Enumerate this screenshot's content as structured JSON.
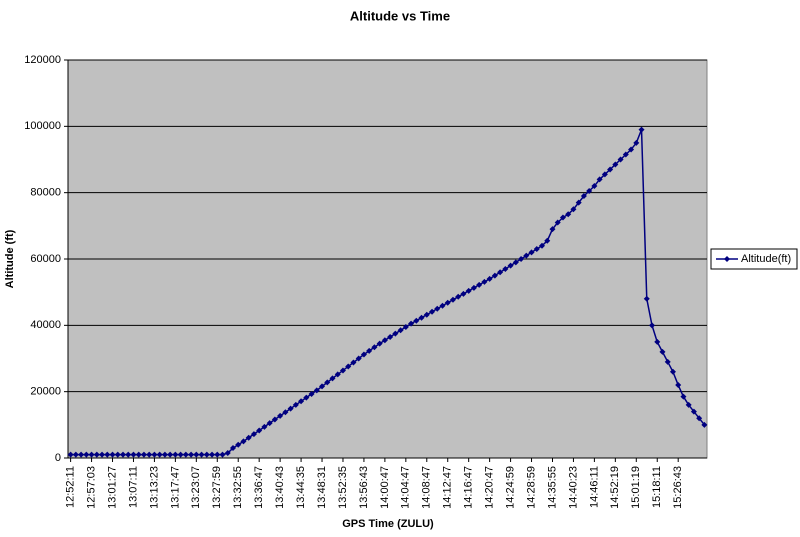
{
  "chart_data": {
    "type": "line",
    "title": "Altitude vs Time",
    "x_label": "GPS Time (ZULU)",
    "y_label": "Altitude (ft)",
    "categories": [
      "12:52:11",
      null,
      null,
      null,
      "12:57:03",
      null,
      null,
      null,
      "13:01:27",
      null,
      null,
      null,
      "13:07:11",
      null,
      null,
      null,
      "13:13:23",
      null,
      null,
      null,
      "13:17:47",
      null,
      null,
      null,
      "13:23:07",
      null,
      null,
      null,
      "13:27:59",
      null,
      null,
      null,
      "13:32:55",
      null,
      null,
      null,
      "13:36:47",
      null,
      null,
      null,
      "13:40:43",
      null,
      null,
      null,
      "13:44:35",
      null,
      null,
      null,
      "13:48:31",
      null,
      null,
      null,
      "13:52:35",
      null,
      null,
      null,
      "13:56:43",
      null,
      null,
      null,
      "14:00:47",
      null,
      null,
      null,
      "14:04:47",
      null,
      null,
      null,
      "14:08:47",
      null,
      null,
      null,
      "14:12:47",
      null,
      null,
      null,
      "14:16:47",
      null,
      null,
      null,
      "14:20:47",
      null,
      null,
      null,
      "14:24:59",
      null,
      null,
      null,
      "14:28:59",
      null,
      null,
      null,
      "14:35:55",
      null,
      null,
      null,
      "14:40:23",
      null,
      null,
      null,
      "14:46:11",
      null,
      null,
      null,
      "14:52:19",
      null,
      null,
      null,
      "15:01:19",
      null,
      null,
      null,
      "15:18:11",
      null,
      null,
      null,
      "15:26:43",
      null,
      null,
      null,
      null,
      null
    ],
    "series": [
      {
        "name": "Altitude(ft)",
        "color": "#000080",
        "values": [
          1000,
          1000,
          1000,
          1000,
          1000,
          1000,
          1000,
          1000,
          1000,
          1000,
          1000,
          1000,
          1000,
          1000,
          1000,
          1000,
          1000,
          1000,
          1000,
          1000,
          1000,
          1000,
          1000,
          1000,
          1000,
          1000,
          1000,
          1000,
          1000,
          1000,
          1500,
          3000,
          4000,
          5000,
          6100,
          7200,
          8300,
          9400,
          10500,
          11600,
          12700,
          13800,
          14900,
          16000,
          17100,
          18200,
          19300,
          20400,
          21600,
          22800,
          24000,
          25200,
          26400,
          27600,
          28800,
          30000,
          31200,
          32300,
          33400,
          34500,
          35500,
          36500,
          37500,
          38500,
          39500,
          40500,
          41400,
          42300,
          43200,
          44100,
          45000,
          45900,
          46800,
          47700,
          48600,
          49500,
          50400,
          51300,
          52200,
          53100,
          54000,
          55000,
          56000,
          57000,
          58000,
          59000,
          60000,
          61000,
          62000,
          63000,
          64000,
          65500,
          69000,
          71000,
          72500,
          73500,
          75000,
          77000,
          79000,
          80500,
          82000,
          84000,
          85500,
          87000,
          88500,
          90000,
          91500,
          93000,
          95000,
          99000,
          48000,
          40000,
          35000,
          32000,
          29000,
          26000,
          22000,
          18500,
          16000,
          14000,
          12000,
          10000
        ]
      }
    ],
    "ylim": [
      0,
      120000
    ],
    "yticks": [
      0,
      20000,
      40000,
      60000,
      80000,
      100000,
      120000
    ],
    "grid": true,
    "legend": "right"
  }
}
